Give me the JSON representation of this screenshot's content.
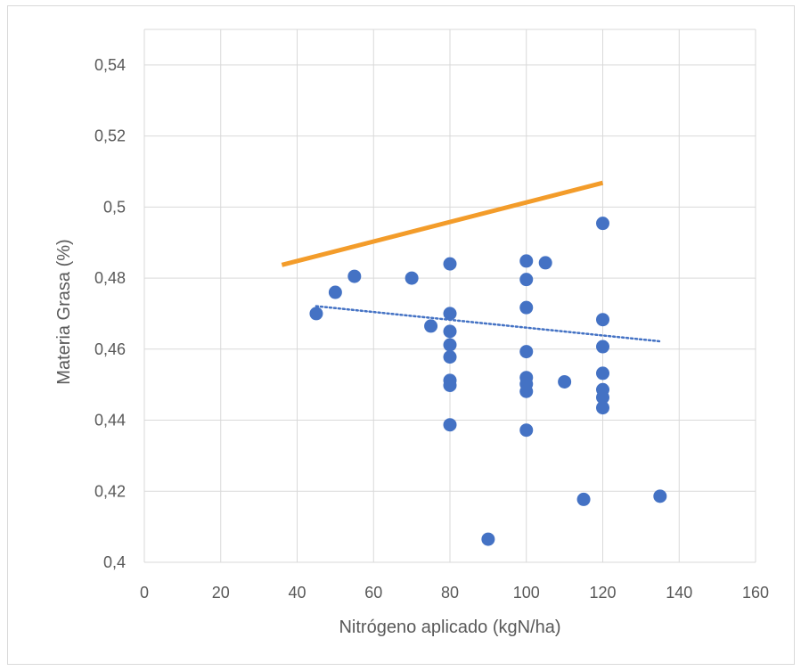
{
  "chart_data": {
    "type": "scatter",
    "xlabel": "Nitrógeno aplicado (kgN/ha)",
    "ylabel": "Materia Grasa (%)",
    "xlim": [
      0,
      160
    ],
    "ylim": [
      0.4,
      0.55
    ],
    "x_ticks": [
      "0",
      "20",
      "40",
      "60",
      "80",
      "100",
      "120",
      "140",
      "160"
    ],
    "y_ticks": [
      "0,4",
      "0,42",
      "0,44",
      "0,46",
      "0,48",
      "0,5",
      "0,52",
      "0,54"
    ],
    "grid": true,
    "series": [
      {
        "color": "#4472c4",
        "points": [
          [
            45,
            0.47
          ],
          [
            50,
            0.476
          ],
          [
            55,
            0.4805
          ],
          [
            70,
            0.48
          ],
          [
            75,
            0.4665
          ],
          [
            80,
            0.484
          ],
          [
            80,
            0.47
          ],
          [
            80,
            0.465
          ],
          [
            80,
            0.4612
          ],
          [
            80,
            0.4578
          ],
          [
            80,
            0.4512
          ],
          [
            80,
            0.4498
          ],
          [
            80,
            0.4387
          ],
          [
            90,
            0.4065
          ],
          [
            100,
            0.4848
          ],
          [
            100,
            0.4796
          ],
          [
            100,
            0.4717
          ],
          [
            100,
            0.4593
          ],
          [
            100,
            0.452
          ],
          [
            100,
            0.4502
          ],
          [
            100,
            0.4481
          ],
          [
            100,
            0.4372
          ],
          [
            105,
            0.4843
          ],
          [
            110,
            0.4508
          ],
          [
            115,
            0.4177
          ],
          [
            120,
            0.4954
          ],
          [
            120,
            0.4683
          ],
          [
            120,
            0.4607
          ],
          [
            120,
            0.4532
          ],
          [
            120,
            0.4486
          ],
          [
            120,
            0.4464
          ],
          [
            120,
            0.4435
          ],
          [
            135,
            0.4186
          ]
        ]
      }
    ],
    "trendline": {
      "color": "#4472c4",
      "style": "dotted",
      "points": [
        [
          45,
          0.4721
        ],
        [
          135,
          0.4622
        ]
      ]
    },
    "annotation_line": {
      "color": "#f39c2a",
      "points": [
        [
          36,
          0.4837
        ],
        [
          120,
          0.5068
        ]
      ]
    }
  }
}
